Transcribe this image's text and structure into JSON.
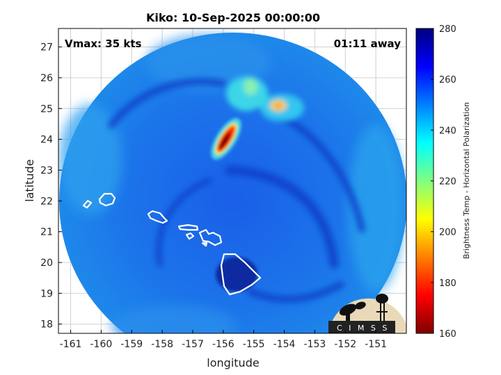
{
  "chart_data": {
    "type": "heatmap",
    "title": "Kiko: 10-Sep-2025 00:00:00",
    "annotations": {
      "vmax": "Vmax: 35 kts",
      "away": "01:11 away"
    },
    "xlabel": "longitude",
    "ylabel": "latitude",
    "xlim": [
      -161.4,
      -150.0
    ],
    "ylim": [
      17.7,
      27.6
    ],
    "xticks": [
      -161,
      -160,
      -159,
      -158,
      -157,
      -156,
      -155,
      -154,
      -153,
      -152,
      -151
    ],
    "yticks": [
      18,
      19,
      20,
      21,
      22,
      23,
      24,
      25,
      26,
      27
    ],
    "grid": true,
    "colorbar": {
      "label": "Brightness Temp - Horizontal Polarization",
      "range": [
        160,
        280
      ],
      "ticks": [
        160,
        180,
        200,
        220,
        240,
        260,
        280
      ],
      "colormap": "jet"
    },
    "storm_center": {
      "lon": -155.7,
      "lat": 24.0
    },
    "swath": {
      "center_lon": -155.7,
      "center_lat": 22.6,
      "radius_deg": 5.6
    },
    "field_summary": {
      "background": 250,
      "rain_band_min": 165,
      "northeast_cluster": 215
    }
  },
  "logo": {
    "text": "C I M S S"
  },
  "colors": {
    "coastline": "#ffffff",
    "grid": "#d0d0d0",
    "axes": "#000000"
  }
}
